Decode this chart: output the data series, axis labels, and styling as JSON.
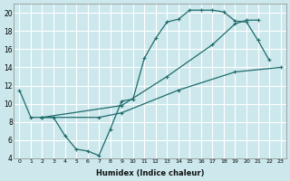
{
  "xlabel": "Humidex (Indice chaleur)",
  "bg_color": "#cce8ec",
  "grid_color": "#ffffff",
  "line_color": "#1e6b6b",
  "xlim": [
    -0.5,
    23.5
  ],
  "ylim": [
    4,
    21
  ],
  "xticks": [
    0,
    1,
    2,
    3,
    4,
    5,
    6,
    7,
    8,
    9,
    10,
    11,
    12,
    13,
    14,
    15,
    16,
    17,
    18,
    19,
    20,
    21,
    22,
    23
  ],
  "yticks": [
    4,
    6,
    8,
    10,
    12,
    14,
    16,
    18,
    20
  ],
  "line1_x": [
    0,
    1,
    2,
    3,
    4,
    5,
    6,
    7,
    8,
    9,
    10,
    11,
    12,
    13,
    14,
    15,
    16,
    17,
    18,
    19,
    20,
    21,
    22
  ],
  "line1_y": [
    11.5,
    8.5,
    8.5,
    8.5,
    6.5,
    5.0,
    4.8,
    4.3,
    7.2,
    10.3,
    10.5,
    15.0,
    17.2,
    19.0,
    19.3,
    20.3,
    20.3,
    20.3,
    20.1,
    19.1,
    19.0,
    17.0,
    14.8
  ],
  "line1_markers_x": [
    0,
    1,
    2,
    3,
    4,
    5,
    6,
    7,
    8,
    9,
    10,
    11,
    12,
    13,
    14,
    15,
    16,
    17,
    18,
    19,
    20,
    21,
    22
  ],
  "line2_x": [
    2,
    9,
    13,
    17,
    19,
    20,
    21
  ],
  "line2_y": [
    8.5,
    9.8,
    13.0,
    16.5,
    18.8,
    19.2,
    19.2
  ],
  "line3_x": [
    2,
    7,
    9,
    14,
    19,
    23
  ],
  "line3_y": [
    8.5,
    8.5,
    9.0,
    11.5,
    13.5,
    14.0
  ]
}
